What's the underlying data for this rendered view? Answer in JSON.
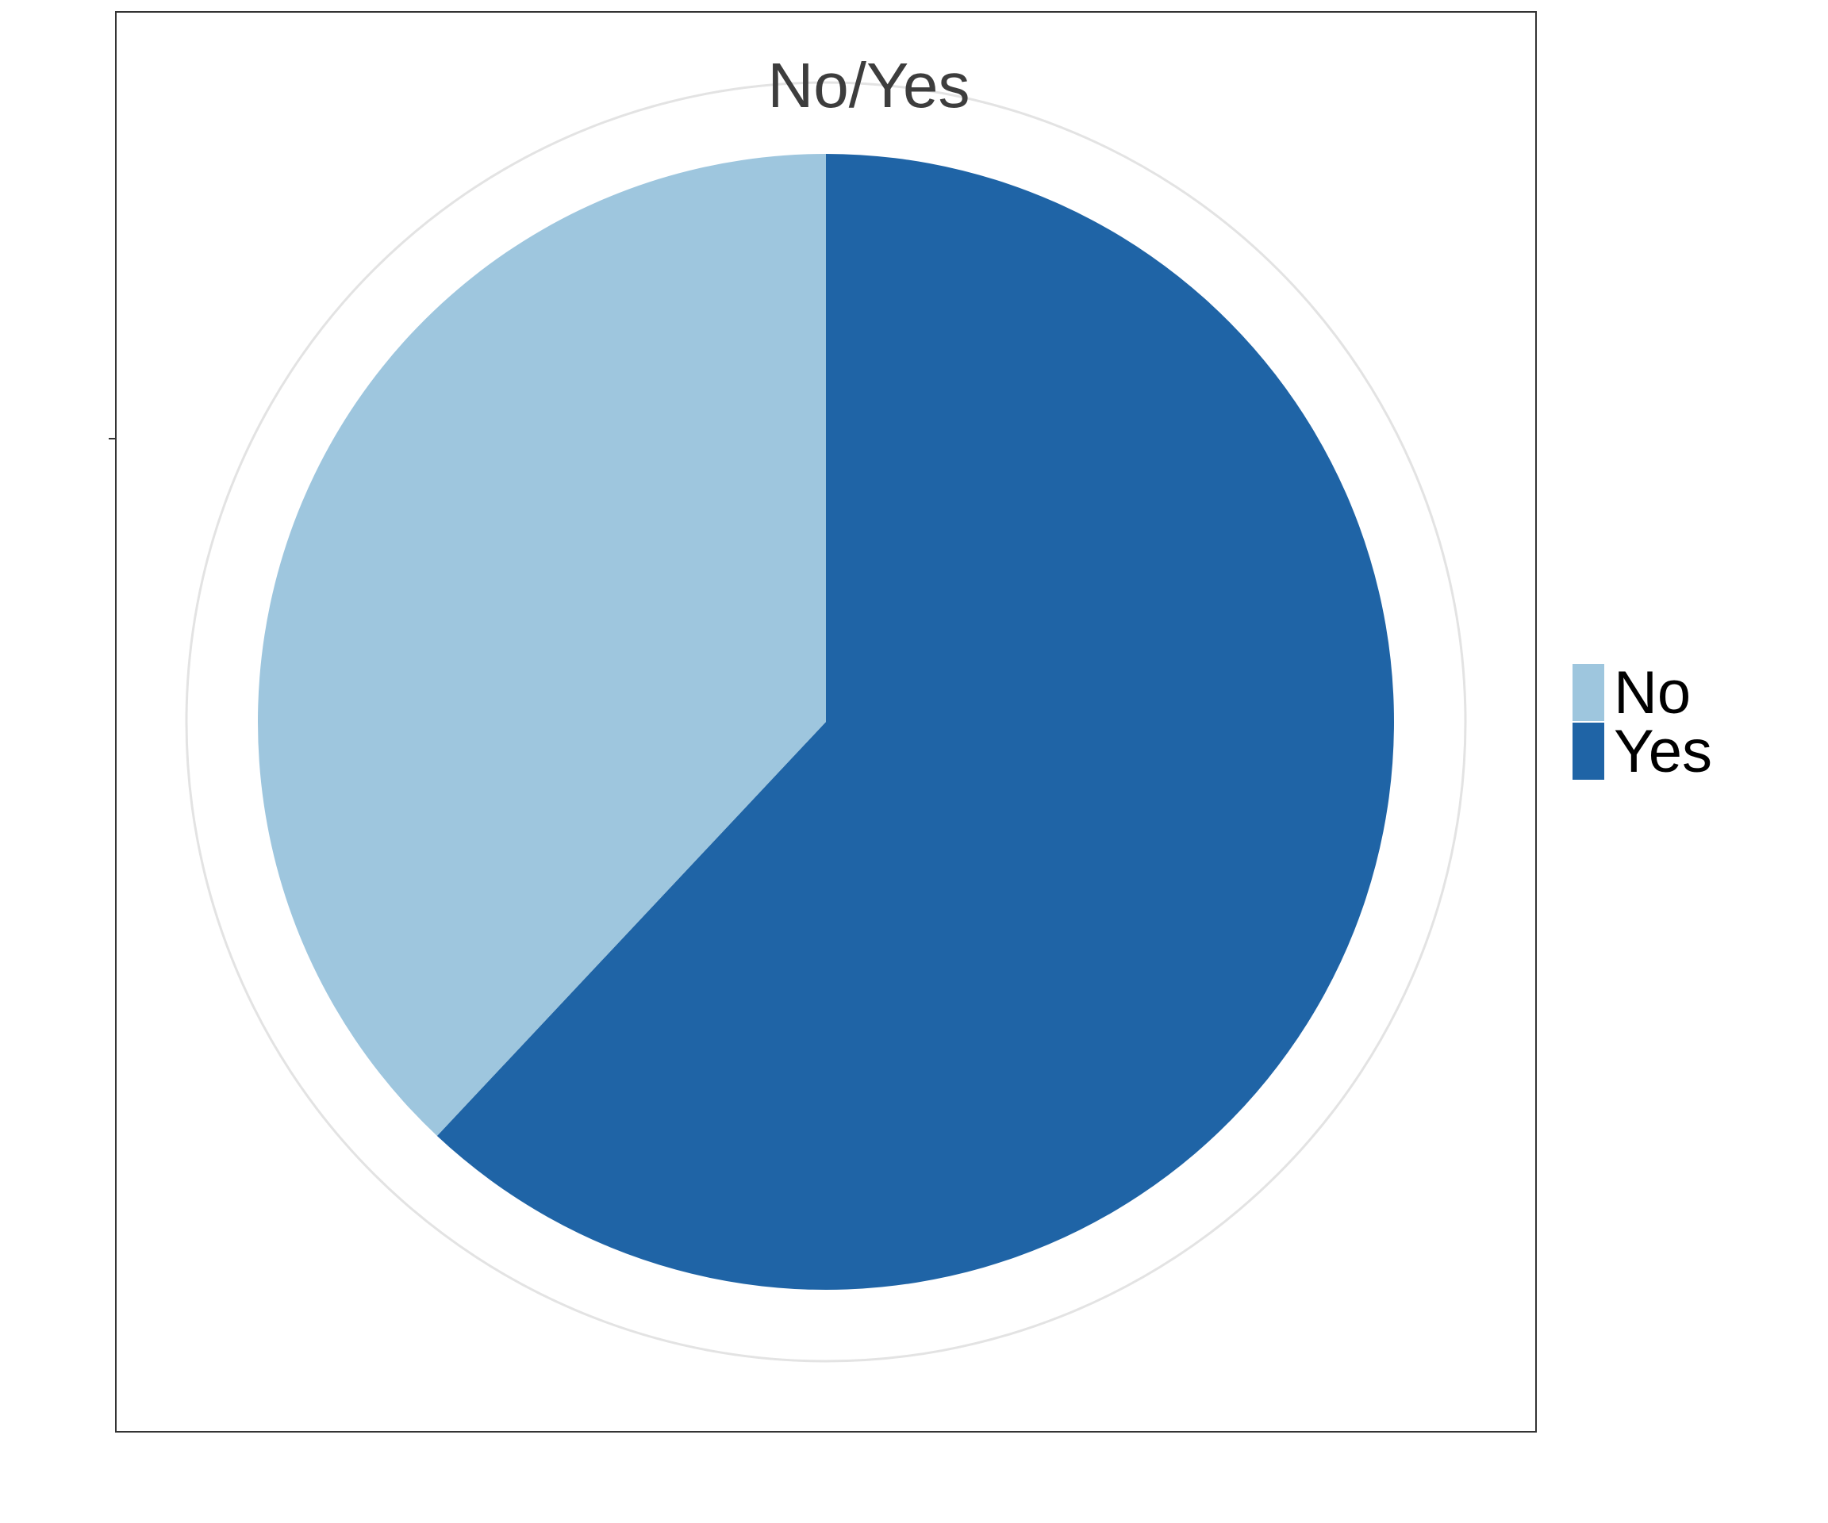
{
  "chart_data": {
    "type": "pie",
    "title": "No/Yes",
    "categories": [
      "No",
      "Yes"
    ],
    "values": [
      38,
      62
    ],
    "colors": [
      "#9ec6de",
      "#1f64a6"
    ],
    "start": "top",
    "direction": "clockwise",
    "order": [
      "Yes",
      "No"
    ],
    "legend": {
      "position": "right",
      "entries": [
        "No",
        "Yes"
      ]
    },
    "grid": true
  }
}
